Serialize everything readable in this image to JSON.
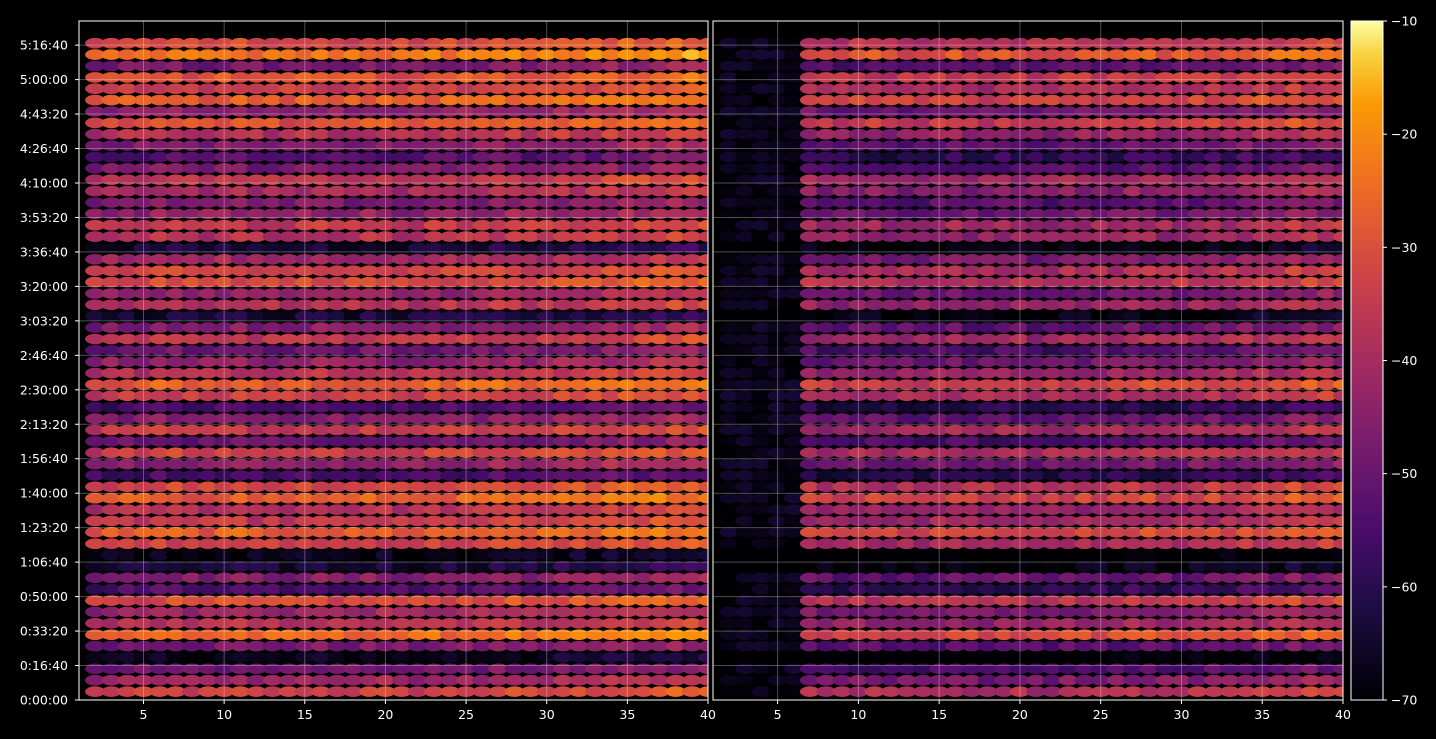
{
  "chart_data": {
    "type": "heatmap",
    "title": "",
    "xlabel": "",
    "ylabel": "",
    "colormap": "inferno",
    "background": "#000000",
    "grid": true,
    "panels": [
      {
        "name": "",
        "xlim": [
          1,
          40
        ],
        "x_ticks": [
          5,
          10,
          15,
          20,
          25,
          30,
          35,
          40
        ],
        "x_tick_labels": [
          "5",
          "10",
          "15",
          "20",
          "25",
          "30",
          "35",
          "40"
        ],
        "columns": 39,
        "rows": 58,
        "row_spacing_seconds": 330
      },
      {
        "name": "",
        "xlim": [
          1,
          40
        ],
        "x_ticks": [
          5,
          10,
          15,
          20,
          25,
          30,
          35,
          40
        ],
        "x_tick_labels": [
          "5",
          "10",
          "15",
          "20",
          "25",
          "30",
          "35",
          "40"
        ],
        "columns": 39,
        "rows": 58,
        "row_spacing_seconds": 330
      }
    ],
    "ylim_seconds": [
      0,
      19700
    ],
    "y_ticks_seconds": [
      0,
      1000,
      2000,
      3000,
      4000,
      5000,
      6000,
      7000,
      8000,
      9000,
      10000,
      11000,
      12000,
      13000,
      14000,
      15000,
      16000,
      17000,
      18000,
      19000
    ],
    "y_tick_labels": [
      "0:00:00",
      "0:16:40",
      "0:33:20",
      "0:50:00",
      "1:06:40",
      "1:23:20",
      "1:40:00",
      "1:56:40",
      "2:13:20",
      "2:30:00",
      "2:46:40",
      "3:03:20",
      "3:20:00",
      "3:36:40",
      "3:53:20",
      "4:10:00",
      "4:26:40",
      "4:43:20",
      "5:00:00",
      "5:16:40"
    ],
    "colorbar": {
      "range": [
        -70,
        -10
      ],
      "ticks": [
        -70,
        -60,
        -50,
        -40,
        -30,
        -20,
        -10
      ],
      "tick_labels": [
        "−70",
        "−60",
        "−50",
        "−40",
        "−30",
        "−20",
        "−10"
      ]
    },
    "row_levels_dB": [
      -36,
      -44,
      -52,
      -64,
      -50,
      -28,
      -40,
      -44,
      -34,
      -56,
      -48,
      -60,
      -64,
      -36,
      -30,
      -38,
      -40,
      -30,
      -34,
      -58,
      -46,
      -36,
      -52,
      -38,
      -48,
      -58,
      -36,
      -30,
      -40,
      -46,
      -52,
      -38,
      -48,
      -60,
      -40,
      -46,
      -34,
      -36,
      -44,
      -60,
      -40,
      -38,
      -46,
      -50,
      -42,
      -38,
      -50,
      -56,
      -48,
      -40,
      -32,
      -46,
      -30,
      -36,
      -32,
      -50,
      -26,
      -34
    ],
    "column_profile": [
      0,
      1,
      1,
      1,
      2,
      2,
      1,
      1,
      2,
      2,
      1,
      1,
      1,
      2,
      2,
      1,
      1,
      2,
      2,
      1,
      1,
      2,
      2,
      2,
      2,
      3,
      3,
      2,
      2,
      3,
      3,
      3,
      4,
      4,
      4,
      5,
      5,
      5,
      5
    ],
    "right_panel_offset_dB": -6,
    "right_panel_dark_columns": 5
  }
}
